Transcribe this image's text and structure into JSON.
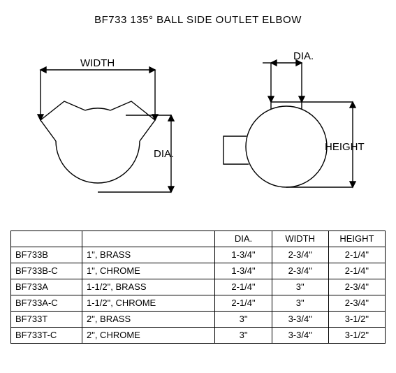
{
  "title": "BF733 135° BALL SIDE OUTLET ELBOW",
  "diagram": {
    "labels": {
      "width": "WIDTH",
      "dia_left": "DIA.",
      "dia_top": "DIA.",
      "height": "HEIGHT"
    },
    "stroke": "#000000",
    "stroke_width": 1.4,
    "bg": "#ffffff"
  },
  "table": {
    "headers": {
      "code": "",
      "desc": "",
      "dia": "DIA.",
      "width": "WIDTH",
      "height": "HEIGHT"
    },
    "rows": [
      {
        "code": "BF733B",
        "desc": "1\", BRASS",
        "dia": "1-3/4\"",
        "width": "2-3/4\"",
        "height": "2-1/4\""
      },
      {
        "code": "BF733B-C",
        "desc": "1\", CHROME",
        "dia": "1-3/4\"",
        "width": "2-3/4\"",
        "height": "2-1/4\""
      },
      {
        "code": "BF733A",
        "desc": "1-1/2\", BRASS",
        "dia": "2-1/4\"",
        "width": "3\"",
        "height": "2-3/4\""
      },
      {
        "code": "BF733A-C",
        "desc": "1-1/2\", CHROME",
        "dia": "2-1/4\"",
        "width": "3\"",
        "height": "2-3/4\""
      },
      {
        "code": "BF733T",
        "desc": "2\", BRASS",
        "dia": "3\"",
        "width": "3-3/4\"",
        "height": "3-1/2\""
      },
      {
        "code": "BF733T-C",
        "desc": "2\", CHROME",
        "dia": "3\"",
        "width": "3-3/4\"",
        "height": "3-1/2\""
      }
    ]
  }
}
